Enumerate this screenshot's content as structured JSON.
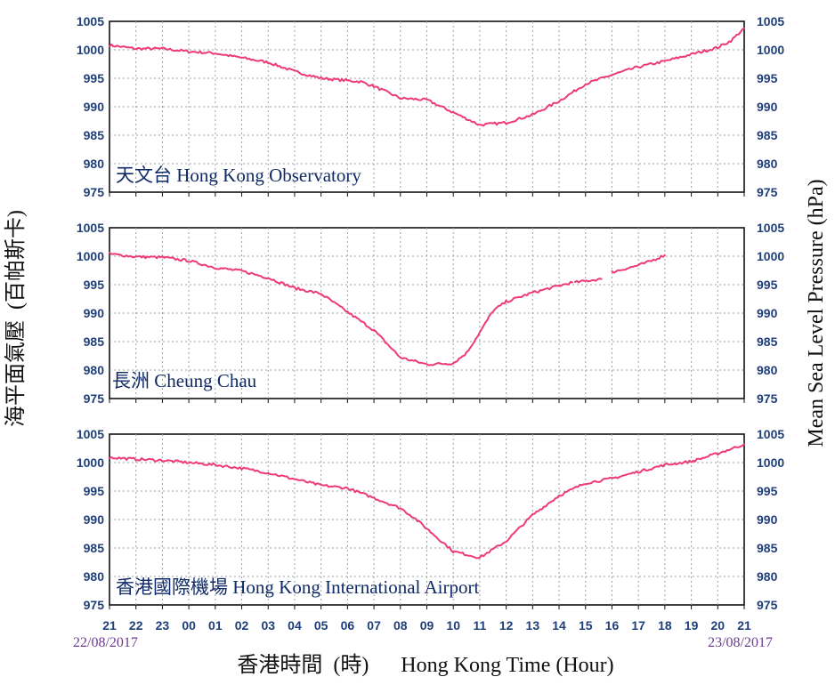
{
  "chart_data": [
    {
      "type": "line",
      "title": "天文台  Hong Kong Observatory",
      "ylim": [
        975,
        1005
      ],
      "yticks": [
        975,
        980,
        985,
        990,
        995,
        1000,
        1005
      ],
      "color": "#ee3b74",
      "series": [
        {
          "x": [
            0,
            1,
            2,
            3,
            4,
            5,
            6,
            7,
            8,
            9,
            9.5,
            10,
            11,
            12,
            13,
            14,
            15,
            16,
            17,
            18,
            19,
            20,
            21,
            22,
            23,
            23.5,
            24
          ],
          "y": [
            1000.8,
            1000.2,
            1000.2,
            999.7,
            999.4,
            998.6,
            997.8,
            996.2,
            995.0,
            994.6,
            994.4,
            993.6,
            991.5,
            991.2,
            989.0,
            986.8,
            987.2,
            988.6,
            991.0,
            994.0,
            995.6,
            997.0,
            998.0,
            999.2,
            1000.4,
            1001.6,
            1003.8
          ]
        }
      ]
    },
    {
      "type": "line",
      "title": "長洲  Cheung Chau",
      "ylim": [
        975,
        1005
      ],
      "yticks": [
        975,
        980,
        985,
        990,
        995,
        1000,
        1005
      ],
      "color": "#ee3b74",
      "series": [
        {
          "x": [
            0,
            1,
            2,
            3,
            4,
            5,
            6,
            7,
            8,
            9,
            10,
            11,
            12,
            13,
            13.5,
            14,
            14.5,
            15,
            16,
            17,
            17.5
          ],
          "y": [
            1000.4,
            999.9,
            999.8,
            999.2,
            998.0,
            997.4,
            996.2,
            994.4,
            993.4,
            990.2,
            987.0,
            982.2,
            981.0,
            981.2,
            983.0,
            986.6,
            990.4,
            992.0,
            993.6,
            994.8,
            995.4
          ]
        },
        {
          "x": [
            17.6,
            18.6
          ],
          "y": [
            995.4,
            996.0
          ]
        },
        {
          "x": [
            19.0,
            20.0,
            20.5,
            21.0
          ],
          "y": [
            997.2,
            998.4,
            999.2,
            1000.2
          ]
        }
      ]
    },
    {
      "type": "line",
      "title": "香港國際機場 Hong Kong International Airport",
      "ylim": [
        975,
        1005
      ],
      "yticks": [
        975,
        980,
        985,
        990,
        995,
        1000,
        1005
      ],
      "color": "#ee3b74",
      "series": [
        {
          "x": [
            0,
            1,
            2,
            3,
            4,
            5,
            6,
            7,
            8,
            9,
            10,
            10.5,
            11,
            11.5,
            12,
            12.5,
            13,
            14,
            15,
            16,
            17,
            18,
            19,
            20,
            21,
            22,
            23,
            24
          ],
          "y": [
            1000.9,
            1000.6,
            1000.4,
            1000.0,
            999.6,
            999.0,
            998.2,
            997.1,
            996.0,
            995.5,
            993.8,
            992.9,
            992.0,
            990.4,
            988.4,
            986.4,
            984.4,
            983.3,
            986.2,
            990.8,
            994.2,
            996.4,
            997.2,
            998.4,
            999.6,
            1000.2,
            1001.6,
            1003.2
          ]
        }
      ]
    }
  ],
  "x_axis": {
    "ticks": [
      "21",
      "22",
      "23",
      "00",
      "01",
      "02",
      "03",
      "04",
      "05",
      "06",
      "07",
      "08",
      "09",
      "10",
      "11",
      "12",
      "13",
      "14",
      "15",
      "16",
      "17",
      "18",
      "19",
      "20",
      "21"
    ],
    "start_date": "22/08/2017",
    "end_date": "23/08/2017",
    "xlabel": "香港時間  (時)      Hong Kong Time (Hour)"
  },
  "ylabel_left": "海平面氣壓  (百帕斯卡)",
  "ylabel_right": "Mean Sea Level Pressure (hPa)"
}
